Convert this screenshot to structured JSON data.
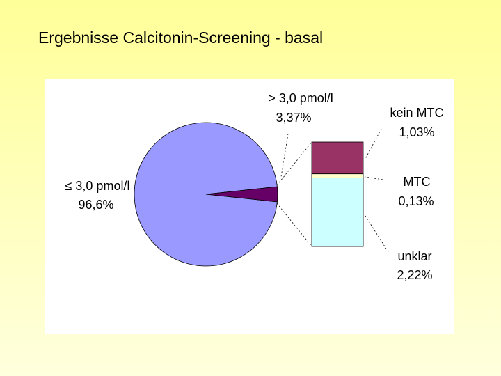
{
  "chart_data": {
    "type": "pie-of-bar",
    "title": "Ergebnisse Calcitonin-Screening - basal",
    "categories": [
      "≤ 3,0 pmol/l",
      "> 3,0 pmol/l"
    ],
    "values": [
      96.6,
      3.37
    ],
    "value_labels": [
      "96,6%",
      "3,37%"
    ],
    "colors": [
      "#9999ff",
      "#660066"
    ],
    "breakdown": {
      "categories": [
        "kein MTC",
        "MTC",
        "unklar"
      ],
      "values": [
        1.03,
        0.13,
        2.22
      ],
      "value_labels": [
        "1,03%",
        "0,13%",
        "2,22%"
      ],
      "colors": [
        "#993366",
        "#ffffcc",
        "#ccffff"
      ]
    }
  }
}
